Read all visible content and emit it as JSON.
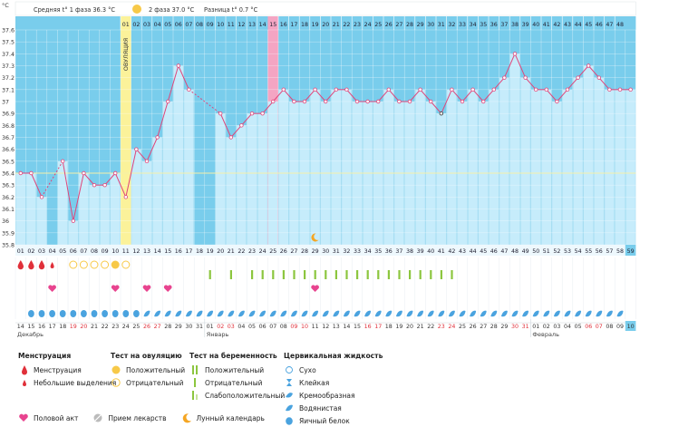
{
  "header": {
    "unit": "°C",
    "phase1": "Средняя t° 1 фаза 36.3 °C",
    "phase2": "2 фаза 37.0 °C",
    "diff": "Разница t° 0.7 °C",
    "ovulation_label": "ОВУЛЯЦИЯ"
  },
  "colors": {
    "phase_bg": "#79cdec",
    "bar": "#c6ecfb",
    "line": "#e0457a",
    "ovulation": "#fbf29a",
    "highlight_day": "#f4a5c3",
    "coverline": "#f5f0a8",
    "moon": "#f5a623",
    "pregnancy_test": "#8cc63f",
    "drop": "#4aa3df",
    "heart": "#e8448f"
  },
  "chart_data": {
    "type": "line",
    "title": "",
    "xlabel": "",
    "ylabel": "°C",
    "ylim": [
      35.8,
      37.6
    ],
    "yticks": [
      "35.8",
      "35.9",
      "36",
      "36.1",
      "36.2",
      "36.3",
      "36.4",
      "36.5",
      "36.6",
      "36.7",
      "36.8",
      "36.9",
      "37",
      "37.1",
      "37.2",
      "37.3",
      "37.4",
      "37.5",
      "37.6"
    ],
    "x": [
      "01",
      "02",
      "03",
      "04",
      "05",
      "06",
      "07",
      "08",
      "09",
      "10",
      "11",
      "12",
      "13",
      "14",
      "15",
      "16",
      "17",
      "18",
      "19",
      "20",
      "21",
      "22",
      "23",
      "24",
      "25",
      "26",
      "27",
      "28",
      "29",
      "30",
      "31",
      "32",
      "33",
      "34",
      "35",
      "36",
      "37",
      "38",
      "39",
      "40",
      "41",
      "42",
      "43",
      "44",
      "45",
      "46",
      "47",
      "48",
      "49",
      "50",
      "51",
      "52",
      "53",
      "54",
      "55",
      "56",
      "57",
      "58",
      "59"
    ],
    "series": [
      {
        "values": [
          36.4,
          36.4,
          36.2,
          null,
          36.5,
          36.0,
          36.4,
          36.3,
          36.3,
          36.4,
          36.2,
          36.6,
          36.5,
          36.7,
          37.0,
          37.3,
          37.1,
          null,
          null,
          36.9,
          36.7,
          36.8,
          36.9,
          36.9,
          37.0,
          37.1,
          37.0,
          37.0,
          37.1,
          37.0,
          37.1,
          37.1,
          37.0,
          37.0,
          37.0,
          37.1,
          37.0,
          37.0,
          37.1,
          37.0,
          36.9,
          37.1,
          37.0,
          37.1,
          37.0,
          37.1,
          37.2,
          37.4,
          37.2,
          37.1,
          37.1,
          37.0,
          37.1,
          37.2,
          37.3,
          37.2,
          37.1,
          37.1,
          37.1
        ]
      }
    ],
    "top_numbers": [
      "01",
      "02",
      "03",
      "04",
      "05",
      "06",
      "07",
      "08",
      "09",
      "10",
      "11",
      "12",
      "13",
      "14",
      "15",
      "16",
      "17",
      "18",
      "19",
      "20",
      "21",
      "22",
      "23",
      "24",
      "25",
      "26",
      "27",
      "28",
      "29",
      "30",
      "31",
      "32",
      "33",
      "34",
      "35",
      "36",
      "37",
      "38",
      "39",
      "40",
      "41",
      "42",
      "43",
      "44",
      "45",
      "46",
      "47",
      "48"
    ],
    "coverline": 36.4,
    "ovulation_day": "11",
    "highlight_day": "25",
    "moon_day": "29",
    "grid": true
  },
  "markers": {
    "menstruation": [
      1,
      2,
      3
    ],
    "spotting": [
      4
    ],
    "ovulation_negative": [
      6,
      7,
      8,
      9,
      11
    ],
    "ovulation_positive": [
      10
    ],
    "pregnancy_negative": [
      19,
      21,
      23,
      24,
      25,
      26,
      27,
      28,
      29,
      30,
      31,
      32,
      33,
      34,
      35,
      36,
      37,
      38,
      39,
      40,
      41,
      42
    ],
    "intercourse": [
      4,
      10,
      13,
      15,
      29
    ],
    "mucus_egg": [
      2,
      3,
      4,
      5,
      6,
      7,
      8,
      9,
      10,
      11,
      12
    ],
    "mucus_water": [
      13,
      14,
      15,
      16,
      17,
      18,
      19,
      20,
      21,
      22,
      23,
      24,
      25,
      26,
      27,
      28,
      29,
      30,
      31,
      32,
      33,
      34,
      35,
      36,
      37,
      38,
      39,
      40,
      41,
      42,
      43,
      44,
      45,
      46,
      47,
      48,
      49,
      50,
      51,
      52,
      53,
      54,
      55,
      56,
      57,
      58
    ]
  },
  "dates": {
    "days": [
      "14",
      "15",
      "16",
      "17",
      "18",
      "19",
      "20",
      "21",
      "22",
      "23",
      "24",
      "25",
      "26",
      "27",
      "28",
      "29",
      "30",
      "31",
      "01",
      "02",
      "03",
      "04",
      "05",
      "06",
      "07",
      "08",
      "09",
      "10",
      "11",
      "12",
      "13",
      "14",
      "15",
      "16",
      "17",
      "18",
      "19",
      "20",
      "21",
      "22",
      "23",
      "24",
      "25",
      "26",
      "27",
      "28",
      "29",
      "30",
      "31",
      "01",
      "02",
      "03",
      "04",
      "05",
      "06",
      "07",
      "08",
      "09",
      "10"
    ],
    "months": [
      {
        "label": "Декабрь",
        "index": 0
      },
      {
        "label": "Январь",
        "index": 18
      },
      {
        "label": "Февраль",
        "index": 49
      }
    ]
  },
  "legend": {
    "menstruation": {
      "title": "Менструация",
      "items": [
        "Менструация",
        "Небольшие выделения"
      ]
    },
    "ovulation_test": {
      "title": "Тест на овуляцию",
      "items": [
        "Положительный",
        "Отрицательный"
      ]
    },
    "pregnancy_test": {
      "title": "Тест на беременность",
      "items": [
        "Положительный",
        "Отрицательный",
        "Слабоположительный"
      ]
    },
    "cervical": {
      "title": "Цервикальная жидкость",
      "items": [
        "Сухо",
        "Клейкая",
        "Кремообразная",
        "Водянистая",
        "Яичный белок"
      ]
    },
    "bottom": [
      "Половой акт",
      "Прием лекарств",
      "Лунный календарь"
    ]
  }
}
